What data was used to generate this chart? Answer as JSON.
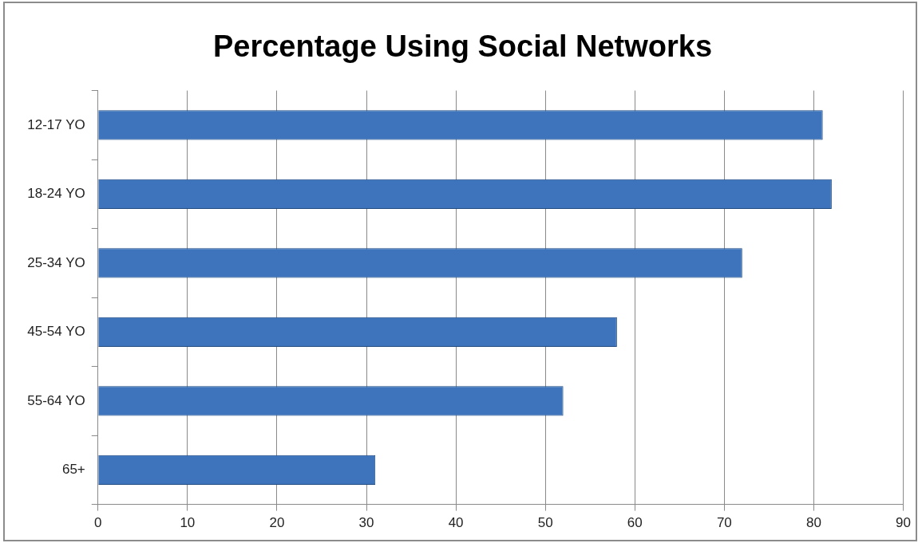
{
  "chart_data": {
    "type": "bar",
    "orientation": "horizontal",
    "title": "Percentage Using Social Networks",
    "categories": [
      "12-17 YO",
      "18-24 YO",
      "25-34 YO",
      "45-54 YO",
      "55-64 YO",
      "65+"
    ],
    "values": [
      81,
      82,
      72,
      58,
      52,
      31
    ],
    "color": "#3d74bb",
    "xlim": [
      0,
      90
    ],
    "xticks": [
      0,
      10,
      20,
      30,
      40,
      50,
      60,
      70,
      80,
      90
    ],
    "grid": "x",
    "legend": false
  }
}
